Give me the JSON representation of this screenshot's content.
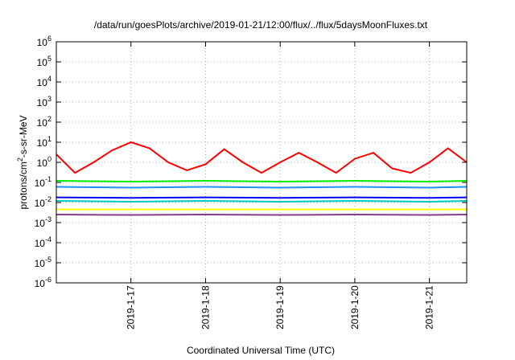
{
  "chart_data": {
    "type": "line",
    "title": "/data/run/goesPlots/archive/2019-01-21/12:00/flux/../flux/5daysMoonFluxes.txt",
    "xlabel": "Coordinated Universal Time (UTC)",
    "ylabel": {
      "prefix": "protons/cm",
      "sup": "2",
      "suffix": "-s-sr-MeV"
    },
    "y_scale": "log",
    "y_ticks": [
      {
        "base": "10",
        "exp": "-6",
        "value": 1e-06
      },
      {
        "base": "10",
        "exp": "-5",
        "value": 1e-05
      },
      {
        "base": "10",
        "exp": "-4",
        "value": 0.0001
      },
      {
        "base": "10",
        "exp": "-3",
        "value": 0.001
      },
      {
        "base": "10",
        "exp": "-2",
        "value": 0.01
      },
      {
        "base": "10",
        "exp": "-1",
        "value": 0.1
      },
      {
        "base": "10",
        "exp": "0",
        "value": 1
      },
      {
        "base": "10",
        "exp": "1",
        "value": 10
      },
      {
        "base": "10",
        "exp": "2",
        "value": 100
      },
      {
        "base": "10",
        "exp": "3",
        "value": 1000
      },
      {
        "base": "10",
        "exp": "4",
        "value": 10000
      },
      {
        "base": "10",
        "exp": "5",
        "value": 100000
      },
      {
        "base": "10",
        "exp": "6",
        "value": 1000000
      }
    ],
    "ylim": [
      1e-06,
      1000000.0
    ],
    "x_ticks": [
      "2019-1-17",
      "2019-1-18",
      "2019-1-19",
      "2019-1-20",
      "2019-1-21"
    ],
    "xlim": [
      "2019-01-16 00:00",
      "2019-01-21 12:00"
    ],
    "grid": true,
    "series": [
      {
        "color": "#ff0000",
        "x": [
          "2019-01-16 00:00",
          "2019-01-16 06:00",
          "2019-01-16 12:00",
          "2019-01-16 18:00",
          "2019-01-17 00:00",
          "2019-01-17 06:00",
          "2019-01-17 12:00",
          "2019-01-17 18:00",
          "2019-01-18 00:00",
          "2019-01-18 06:00",
          "2019-01-18 12:00",
          "2019-01-18 18:00",
          "2019-01-19 00:00",
          "2019-01-19 06:00",
          "2019-01-19 12:00",
          "2019-01-19 18:00",
          "2019-01-20 00:00",
          "2019-01-20 06:00",
          "2019-01-20 12:00",
          "2019-01-20 18:00",
          "2019-01-21 00:00",
          "2019-01-21 06:00",
          "2019-01-21 12:00"
        ],
        "values": [
          2.5,
          0.3,
          1.0,
          4.0,
          10,
          5,
          1.0,
          0.4,
          0.8,
          4.5,
          1.0,
          0.3,
          1.0,
          3.0,
          1.0,
          0.3,
          1.5,
          3.0,
          0.5,
          0.3,
          1.0,
          5.0,
          1.0
        ]
      },
      {
        "color": "#00ee00",
        "x": [
          "2019-01-16 00:00",
          "2019-01-17 00:00",
          "2019-01-18 00:00",
          "2019-01-19 00:00",
          "2019-01-20 00:00",
          "2019-01-21 00:00",
          "2019-01-21 12:00"
        ],
        "values": [
          0.12,
          0.11,
          0.12,
          0.11,
          0.12,
          0.11,
          0.12
        ]
      },
      {
        "color": "#1e90ff",
        "x": [
          "2019-01-16 00:00",
          "2019-01-17 00:00",
          "2019-01-18 00:00",
          "2019-01-19 00:00",
          "2019-01-20 00:00",
          "2019-01-21 00:00",
          "2019-01-21 12:00"
        ],
        "values": [
          0.06,
          0.055,
          0.06,
          0.055,
          0.06,
          0.055,
          0.06
        ]
      },
      {
        "color": "#00c8c8",
        "x": [
          "2019-01-16 00:00",
          "2019-01-17 00:00",
          "2019-01-18 00:00",
          "2019-01-19 00:00",
          "2019-01-20 00:00",
          "2019-01-21 00:00",
          "2019-01-21 12:00"
        ],
        "values": [
          0.012,
          0.011,
          0.012,
          0.011,
          0.012,
          0.011,
          0.012
        ]
      },
      {
        "color": "#0000ff",
        "x": [
          "2019-01-16 00:00",
          "2019-01-17 00:00",
          "2019-01-18 00:00",
          "2019-01-19 00:00",
          "2019-01-20 00:00",
          "2019-01-21 00:00",
          "2019-01-21 12:00"
        ],
        "values": [
          0.018,
          0.017,
          0.018,
          0.017,
          0.018,
          0.017,
          0.018
        ]
      },
      {
        "color": "#ffff00",
        "x": [
          "2019-01-16 00:00",
          "2019-01-21 12:00"
        ],
        "values": [
          0.0045,
          0.0045
        ]
      },
      {
        "color": "#8b3a8b",
        "x": [
          "2019-01-16 00:00",
          "2019-01-17 00:00",
          "2019-01-18 00:00",
          "2019-01-19 00:00",
          "2019-01-20 00:00",
          "2019-01-21 00:00",
          "2019-01-21 12:00"
        ],
        "values": [
          0.0025,
          0.0024,
          0.0025,
          0.0024,
          0.0025,
          0.0024,
          0.0025
        ]
      }
    ]
  }
}
